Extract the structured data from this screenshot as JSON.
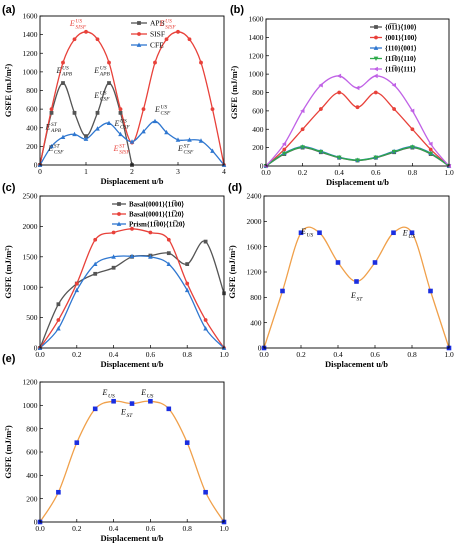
{
  "chart_data": [
    {
      "id": "a",
      "panel_label": "(a)",
      "type": "line",
      "xlabel": "Displacement  u/b",
      "ylabel": "GSFE (mJ/m²)",
      "xlim": [
        0,
        4
      ],
      "ylim": [
        0,
        1600
      ],
      "xticks": [
        0,
        1,
        2,
        3,
        4
      ],
      "yticks": [
        0,
        200,
        400,
        600,
        800,
        1000,
        1200,
        1400,
        1600
      ],
      "legend_position": "top-center",
      "series": [
        {
          "name": "APB",
          "color": "#555555",
          "marker": "square",
          "x": [
            0,
            0.25,
            0.5,
            0.75,
            1,
            1.25,
            1.5,
            1.75,
            2
          ],
          "y": [
            0,
            560,
            880,
            560,
            310,
            560,
            880,
            560,
            0
          ]
        },
        {
          "name": "SISF",
          "color": "#e8413a",
          "marker": "circle",
          "x": [
            0,
            0.25,
            0.5,
            0.75,
            1,
            1.25,
            1.5,
            1.75,
            2,
            2.25,
            2.5,
            2.75,
            3,
            3.25,
            3.5,
            3.75,
            4
          ],
          "y": [
            0,
            600,
            1100,
            1350,
            1430,
            1350,
            1100,
            600,
            240,
            600,
            1100,
            1350,
            1430,
            1350,
            1100,
            600,
            0
          ]
        },
        {
          "name": "CFE",
          "color": "#2f77d0",
          "marker": "triangle",
          "x": [
            0,
            0.25,
            0.5,
            0.75,
            1,
            1.25,
            1.5,
            1.75,
            2,
            2.25,
            2.5,
            2.75,
            3,
            3.25,
            3.5,
            3.75,
            4
          ],
          "y": [
            0,
            200,
            300,
            330,
            280,
            390,
            450,
            330,
            250,
            360,
            470,
            350,
            270,
            270,
            260,
            150,
            0
          ]
        }
      ],
      "annotations": [
        {
          "main": "E",
          "sup": "US",
          "sub": "SISF",
          "color": "#e8413a",
          "x": 0.65,
          "y": 1490
        },
        {
          "main": "E",
          "sup": "US",
          "sub": "SISF",
          "color": "#e8413a",
          "x": 2.6,
          "y": 1490
        },
        {
          "main": "E",
          "sup": "US",
          "sub": "APB",
          "color": "#222222",
          "x": 0.36,
          "y": 990
        },
        {
          "main": "E",
          "sup": "US",
          "sub": "APB",
          "color": "#222222",
          "x": 1.18,
          "y": 990
        },
        {
          "main": "E",
          "sup": "US",
          "sub": "CSF",
          "color": "#222222",
          "x": 1.18,
          "y": 720
        },
        {
          "main": "E",
          "sup": "US",
          "sub": "CSF",
          "color": "#222222",
          "x": 2.5,
          "y": 570
        },
        {
          "main": "E",
          "sup": "US",
          "sub": "CSF",
          "color": "#222222",
          "x": 1.62,
          "y": 420
        },
        {
          "main": "E",
          "sup": "ST",
          "sub": "APB",
          "color": "#222222",
          "x": 0.12,
          "y": 380
        },
        {
          "main": "E",
          "sup": "ST",
          "sub": "CSF",
          "color": "#222222",
          "x": 0.18,
          "y": 150
        },
        {
          "main": "E",
          "sup": "ST",
          "sub": "SISF",
          "color": "#e8413a",
          "x": 1.6,
          "y": 150
        },
        {
          "main": "E",
          "sup": "ST",
          "sub": "CSF",
          "color": "#222222",
          "x": 3.0,
          "y": 150
        }
      ]
    },
    {
      "id": "b",
      "panel_label": "(b)",
      "type": "line",
      "xlabel": "Displacement  u/b",
      "ylabel": "GSFE (mJ/m²)",
      "xlim": [
        0,
        1
      ],
      "ylim": [
        0,
        1600
      ],
      "xticks": [
        0,
        0.2,
        0.4,
        0.6,
        0.8,
        1.0
      ],
      "yticks": [
        0,
        200,
        400,
        600,
        800,
        1000,
        1200,
        1400,
        1600
      ],
      "legend_position": "top-right",
      "series": [
        {
          "name": "{0̅1̅1}⟨100⟩",
          "color": "#555555",
          "marker": "square",
          "x": [
            0,
            0.1,
            0.2,
            0.3,
            0.4,
            0.5,
            0.6,
            0.7,
            0.8,
            0.9,
            1.0
          ],
          "y": [
            0,
            130,
            200,
            150,
            90,
            60,
            90,
            150,
            200,
            130,
            0
          ]
        },
        {
          "name": "{001}⟨100⟩",
          "color": "#e8413a",
          "marker": "circle",
          "x": [
            0,
            0.1,
            0.2,
            0.3,
            0.4,
            0.5,
            0.6,
            0.7,
            0.8,
            0.9,
            1.0
          ],
          "y": [
            0,
            180,
            400,
            620,
            800,
            640,
            800,
            620,
            400,
            180,
            0
          ]
        },
        {
          "name": "{110}⟨001⟩",
          "color": "#2f77d0",
          "marker": "triangle",
          "x": [
            0,
            0.1,
            0.2,
            0.3,
            0.4,
            0.5,
            0.6,
            0.7,
            0.8,
            0.9,
            1.0
          ],
          "y": [
            0,
            140,
            210,
            160,
            95,
            65,
            95,
            160,
            210,
            140,
            0
          ]
        },
        {
          "name": "{11̅0}⟨110⟩",
          "color": "#2daa4a",
          "marker": "triangle-down",
          "x": [
            0,
            0.1,
            0.2,
            0.3,
            0.4,
            0.5,
            0.6,
            0.7,
            0.8,
            0.9,
            1.0
          ],
          "y": [
            0,
            135,
            205,
            155,
            92,
            62,
            92,
            155,
            205,
            135,
            0
          ]
        },
        {
          "name": "{11̅0}⟨111⟩",
          "color": "#c062e6",
          "marker": "triangle-left",
          "x": [
            0,
            0.1,
            0.2,
            0.3,
            0.4,
            0.5,
            0.6,
            0.7,
            0.8,
            0.9,
            1.0
          ],
          "y": [
            0,
            240,
            600,
            880,
            980,
            850,
            980,
            880,
            600,
            240,
            0
          ]
        }
      ]
    },
    {
      "id": "c",
      "panel_label": "(c)",
      "type": "line",
      "xlabel": "Displacement  u/b",
      "ylabel": "GSFE (mJ/m²)",
      "xlim": [
        0,
        1
      ],
      "ylim": [
        0,
        2500
      ],
      "xticks": [
        0,
        0.2,
        0.4,
        0.6,
        0.8,
        1.0
      ],
      "yticks": [
        0,
        500,
        1000,
        1500,
        2000,
        2500
      ],
      "legend_position": "top-right",
      "series": [
        {
          "name": "Basal{0001}⟨11̅00⟩",
          "color": "#555555",
          "marker": "square",
          "x": [
            0,
            0.1,
            0.2,
            0.3,
            0.4,
            0.5,
            0.6,
            0.7,
            0.8,
            0.9,
            1.0
          ],
          "y": [
            0,
            720,
            1060,
            1220,
            1320,
            1500,
            1520,
            1560,
            1380,
            1750,
            900
          ]
        },
        {
          "name": "Basal{0001}⟨11̅20⟩",
          "color": "#e8413a",
          "marker": "circle",
          "x": [
            0,
            0.1,
            0.2,
            0.3,
            0.4,
            0.5,
            0.6,
            0.7,
            0.8,
            0.9,
            1.0
          ],
          "y": [
            0,
            460,
            1060,
            1780,
            1900,
            1960,
            1900,
            1780,
            1060,
            460,
            0
          ]
        },
        {
          "name": "Prism{11̅00}⟨11̅20⟩",
          "color": "#2f77d0",
          "marker": "triangle",
          "x": [
            0,
            0.1,
            0.2,
            0.3,
            0.4,
            0.5,
            0.6,
            0.7,
            0.8,
            0.9,
            1.0
          ],
          "y": [
            0,
            320,
            950,
            1380,
            1500,
            1510,
            1500,
            1380,
            950,
            320,
            0
          ]
        }
      ]
    },
    {
      "id": "d",
      "panel_label": "(d)",
      "type": "scatter",
      "xlabel": "Displacement  u/b",
      "ylabel": "GSFE (mJ/m²)",
      "xlim": [
        0,
        1
      ],
      "ylim": [
        0,
        2400
      ],
      "xticks": [
        0,
        0.2,
        0.4,
        0.6,
        0.8,
        1.0
      ],
      "yticks": [
        0,
        400,
        800,
        1200,
        1600,
        2000,
        2400
      ],
      "series": [
        {
          "name": "",
          "color": "#1a2ee0",
          "marker": "square",
          "fit_color": "#f0a04a",
          "x": [
            0,
            0.1,
            0.2,
            0.3,
            0.4,
            0.5,
            0.6,
            0.7,
            0.8,
            0.9,
            1.0
          ],
          "y": [
            0,
            900,
            1820,
            1820,
            1350,
            1050,
            1350,
            1820,
            1820,
            900,
            0
          ]
        }
      ],
      "annotations": [
        {
          "main": "E",
          "sub": "US",
          "x": 0.2,
          "y": 1800
        },
        {
          "main": "E",
          "sub": "US",
          "x": 0.75,
          "y": 1780
        },
        {
          "main": "E",
          "sub": "ST",
          "x": 0.47,
          "y": 790
        }
      ]
    },
    {
      "id": "e",
      "panel_label": "(e)",
      "type": "scatter",
      "xlabel": "Displacement  u/b",
      "ylabel": "GSFE (mJ/m²)",
      "xlim": [
        0,
        1
      ],
      "ylim": [
        0,
        1200
      ],
      "xticks": [
        0,
        0.2,
        0.4,
        0.6,
        0.8,
        1.0
      ],
      "yticks": [
        0,
        200,
        400,
        600,
        800,
        1000,
        1200
      ],
      "series": [
        {
          "name": "",
          "color": "#1a2ee0",
          "marker": "square",
          "fit_color": "#f0a04a",
          "x": [
            0,
            0.1,
            0.2,
            0.3,
            0.4,
            0.5,
            0.6,
            0.7,
            0.8,
            0.9,
            1.0
          ],
          "y": [
            0,
            255,
            680,
            970,
            1035,
            1015,
            1035,
            970,
            680,
            255,
            0
          ]
        }
      ],
      "annotations": [
        {
          "main": "E",
          "sub": "US",
          "x": 0.34,
          "y": 1090
        },
        {
          "main": "E",
          "sub": "US",
          "x": 0.55,
          "y": 1090
        },
        {
          "main": "E",
          "sub": "ST",
          "x": 0.44,
          "y": 920
        }
      ]
    }
  ]
}
